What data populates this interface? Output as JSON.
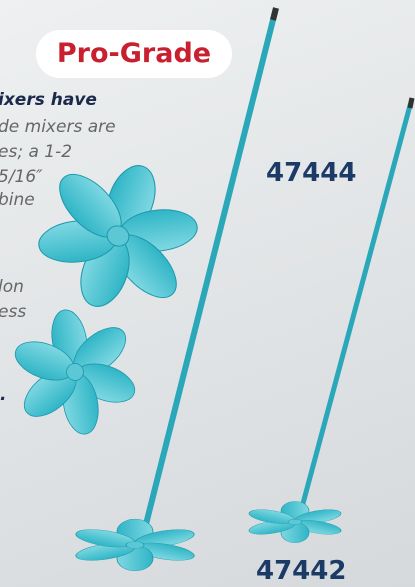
{
  "badge": "Pro-Grade",
  "text_lines": [
    "ixers have",
    "de mixers are",
    "es; a 1-2",
    "5/16″",
    "bine",
    "lon",
    "ess",
    "."
  ],
  "product_numbers": [
    "47444",
    "47442"
  ]
}
